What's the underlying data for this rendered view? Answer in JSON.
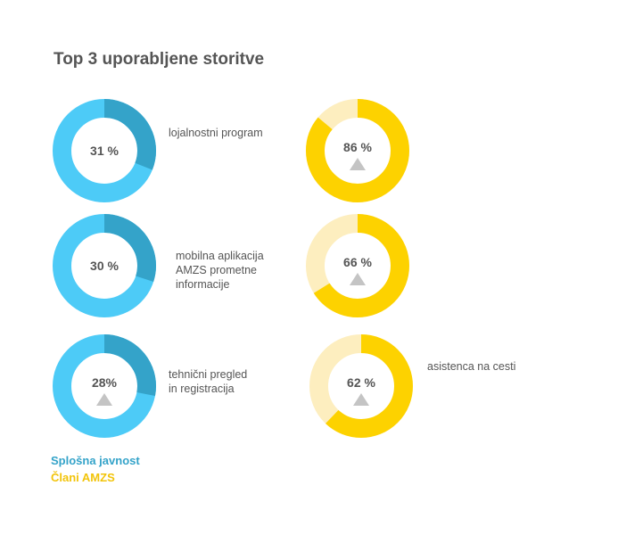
{
  "title": "Top 3 uporabljene storitve",
  "colors": {
    "blue_dark": "#34a3c9",
    "blue_light": "#4dcbf7",
    "yellow": "#fdd200",
    "yellow_light": "#fdeebf",
    "text": "#555555",
    "legend_blue": "#34a3c9",
    "legend_yellow": "#f2c40a",
    "triangle": "#c4c4c4"
  },
  "labels": {
    "service_1": [
      "lojalnostni program"
    ],
    "service_2": [
      "mobilna aplikacija",
      "AMZS prometne",
      "informacije"
    ],
    "service_3": [
      "tehnični pregled",
      "in registracija"
    ],
    "service_4": [
      "asistenca na cesti"
    ]
  },
  "legend": {
    "public": "Splošna javnost",
    "members": "Člani AMZS"
  },
  "chart_data": [
    {
      "type": "pie",
      "group": "Splošna javnost",
      "category": "lojalnostni program",
      "value": 31,
      "value_label": "31 %",
      "marker": false
    },
    {
      "type": "pie",
      "group": "Člani AMZS",
      "category": "lojalnostni program",
      "value": 86,
      "value_label": "86 %",
      "marker": true
    },
    {
      "type": "pie",
      "group": "Splošna javnost",
      "category": "mobilna aplikacija AMZS prometne informacije",
      "value": 30,
      "value_label": "30 %",
      "marker": false
    },
    {
      "type": "pie",
      "group": "Člani AMZS",
      "category": "mobilna aplikacija AMZS prometne informacije",
      "value": 66,
      "value_label": "66 %",
      "marker": true
    },
    {
      "type": "pie",
      "group": "Splošna javnost",
      "category": "tehnični pregled in registracija",
      "value": 28,
      "value_label": "28%",
      "marker": true
    },
    {
      "type": "pie",
      "group": "Člani AMZS",
      "category": "asistenca na cesti",
      "value": 62,
      "value_label": "62 %",
      "marker": true
    }
  ]
}
